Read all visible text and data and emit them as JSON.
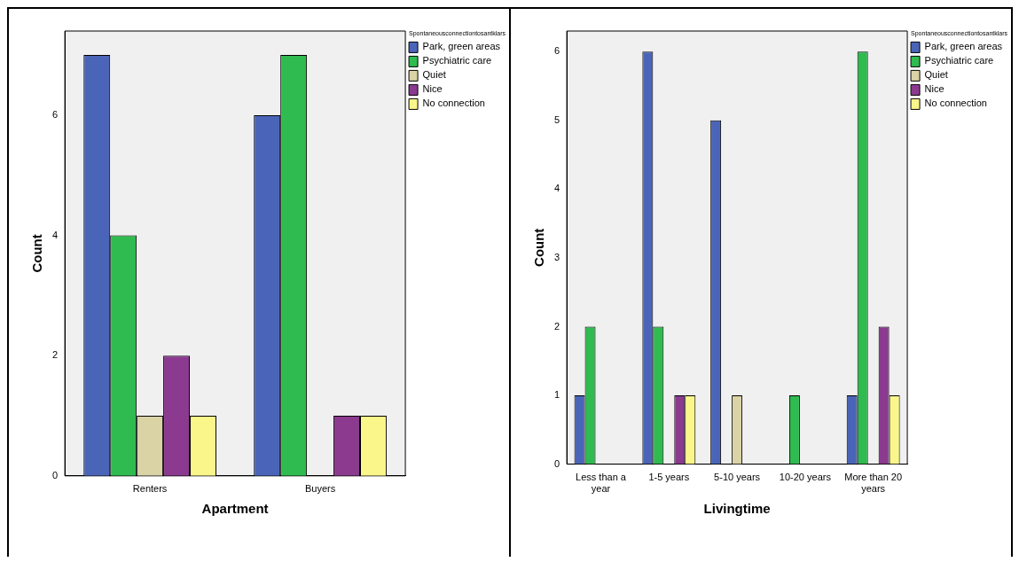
{
  "chart_data": [
    {
      "type": "bar",
      "xlabel": "Apartment",
      "ylabel": "Count",
      "legend_title": "Spontaneousconnectiontosantklars",
      "legend": "top right",
      "grid": false,
      "categories": [
        "Renters",
        "Buyers"
      ],
      "ylim": [
        0,
        7.4
      ],
      "yticks": [
        0,
        2,
        4,
        6
      ],
      "series": [
        {
          "name": "Park, green areas",
          "color": "#4a65b8",
          "values": [
            7,
            6
          ]
        },
        {
          "name": "Psychiatric care",
          "color": "#2fbb4f",
          "values": [
            4,
            7
          ]
        },
        {
          "name": "Quiet",
          "color": "#d9d3a6",
          "values": [
            1,
            null
          ]
        },
        {
          "name": "Nice",
          "color": "#8b3a8f",
          "values": [
            2,
            1
          ]
        },
        {
          "name": "No connection",
          "color": "#fbf68a",
          "values": [
            1,
            1
          ]
        }
      ]
    },
    {
      "type": "bar",
      "xlabel": "Livingtime",
      "ylabel": "Count",
      "legend_title": "Spontaneousconnectiontosantklars",
      "legend": "top right",
      "grid": false,
      "categories": [
        "Less than a year",
        "1-5 years",
        "5-10 years",
        "10-20 years",
        "More than 20 years"
      ],
      "ylim": [
        0,
        6.3
      ],
      "yticks": [
        0,
        1,
        2,
        3,
        4,
        5,
        6
      ],
      "series": [
        {
          "name": "Park, green areas",
          "color": "#4a65b8",
          "values": [
            1,
            6,
            5,
            null,
            1
          ]
        },
        {
          "name": "Psychiatric care",
          "color": "#2fbb4f",
          "values": [
            2,
            2,
            null,
            1,
            6
          ]
        },
        {
          "name": "Quiet",
          "color": "#d9d3a6",
          "values": [
            null,
            null,
            1,
            null,
            null
          ]
        },
        {
          "name": "Nice",
          "color": "#8b3a8f",
          "values": [
            null,
            1,
            null,
            null,
            2
          ]
        },
        {
          "name": "No connection",
          "color": "#fbf68a",
          "values": [
            null,
            1,
            null,
            null,
            1
          ]
        }
      ]
    }
  ]
}
